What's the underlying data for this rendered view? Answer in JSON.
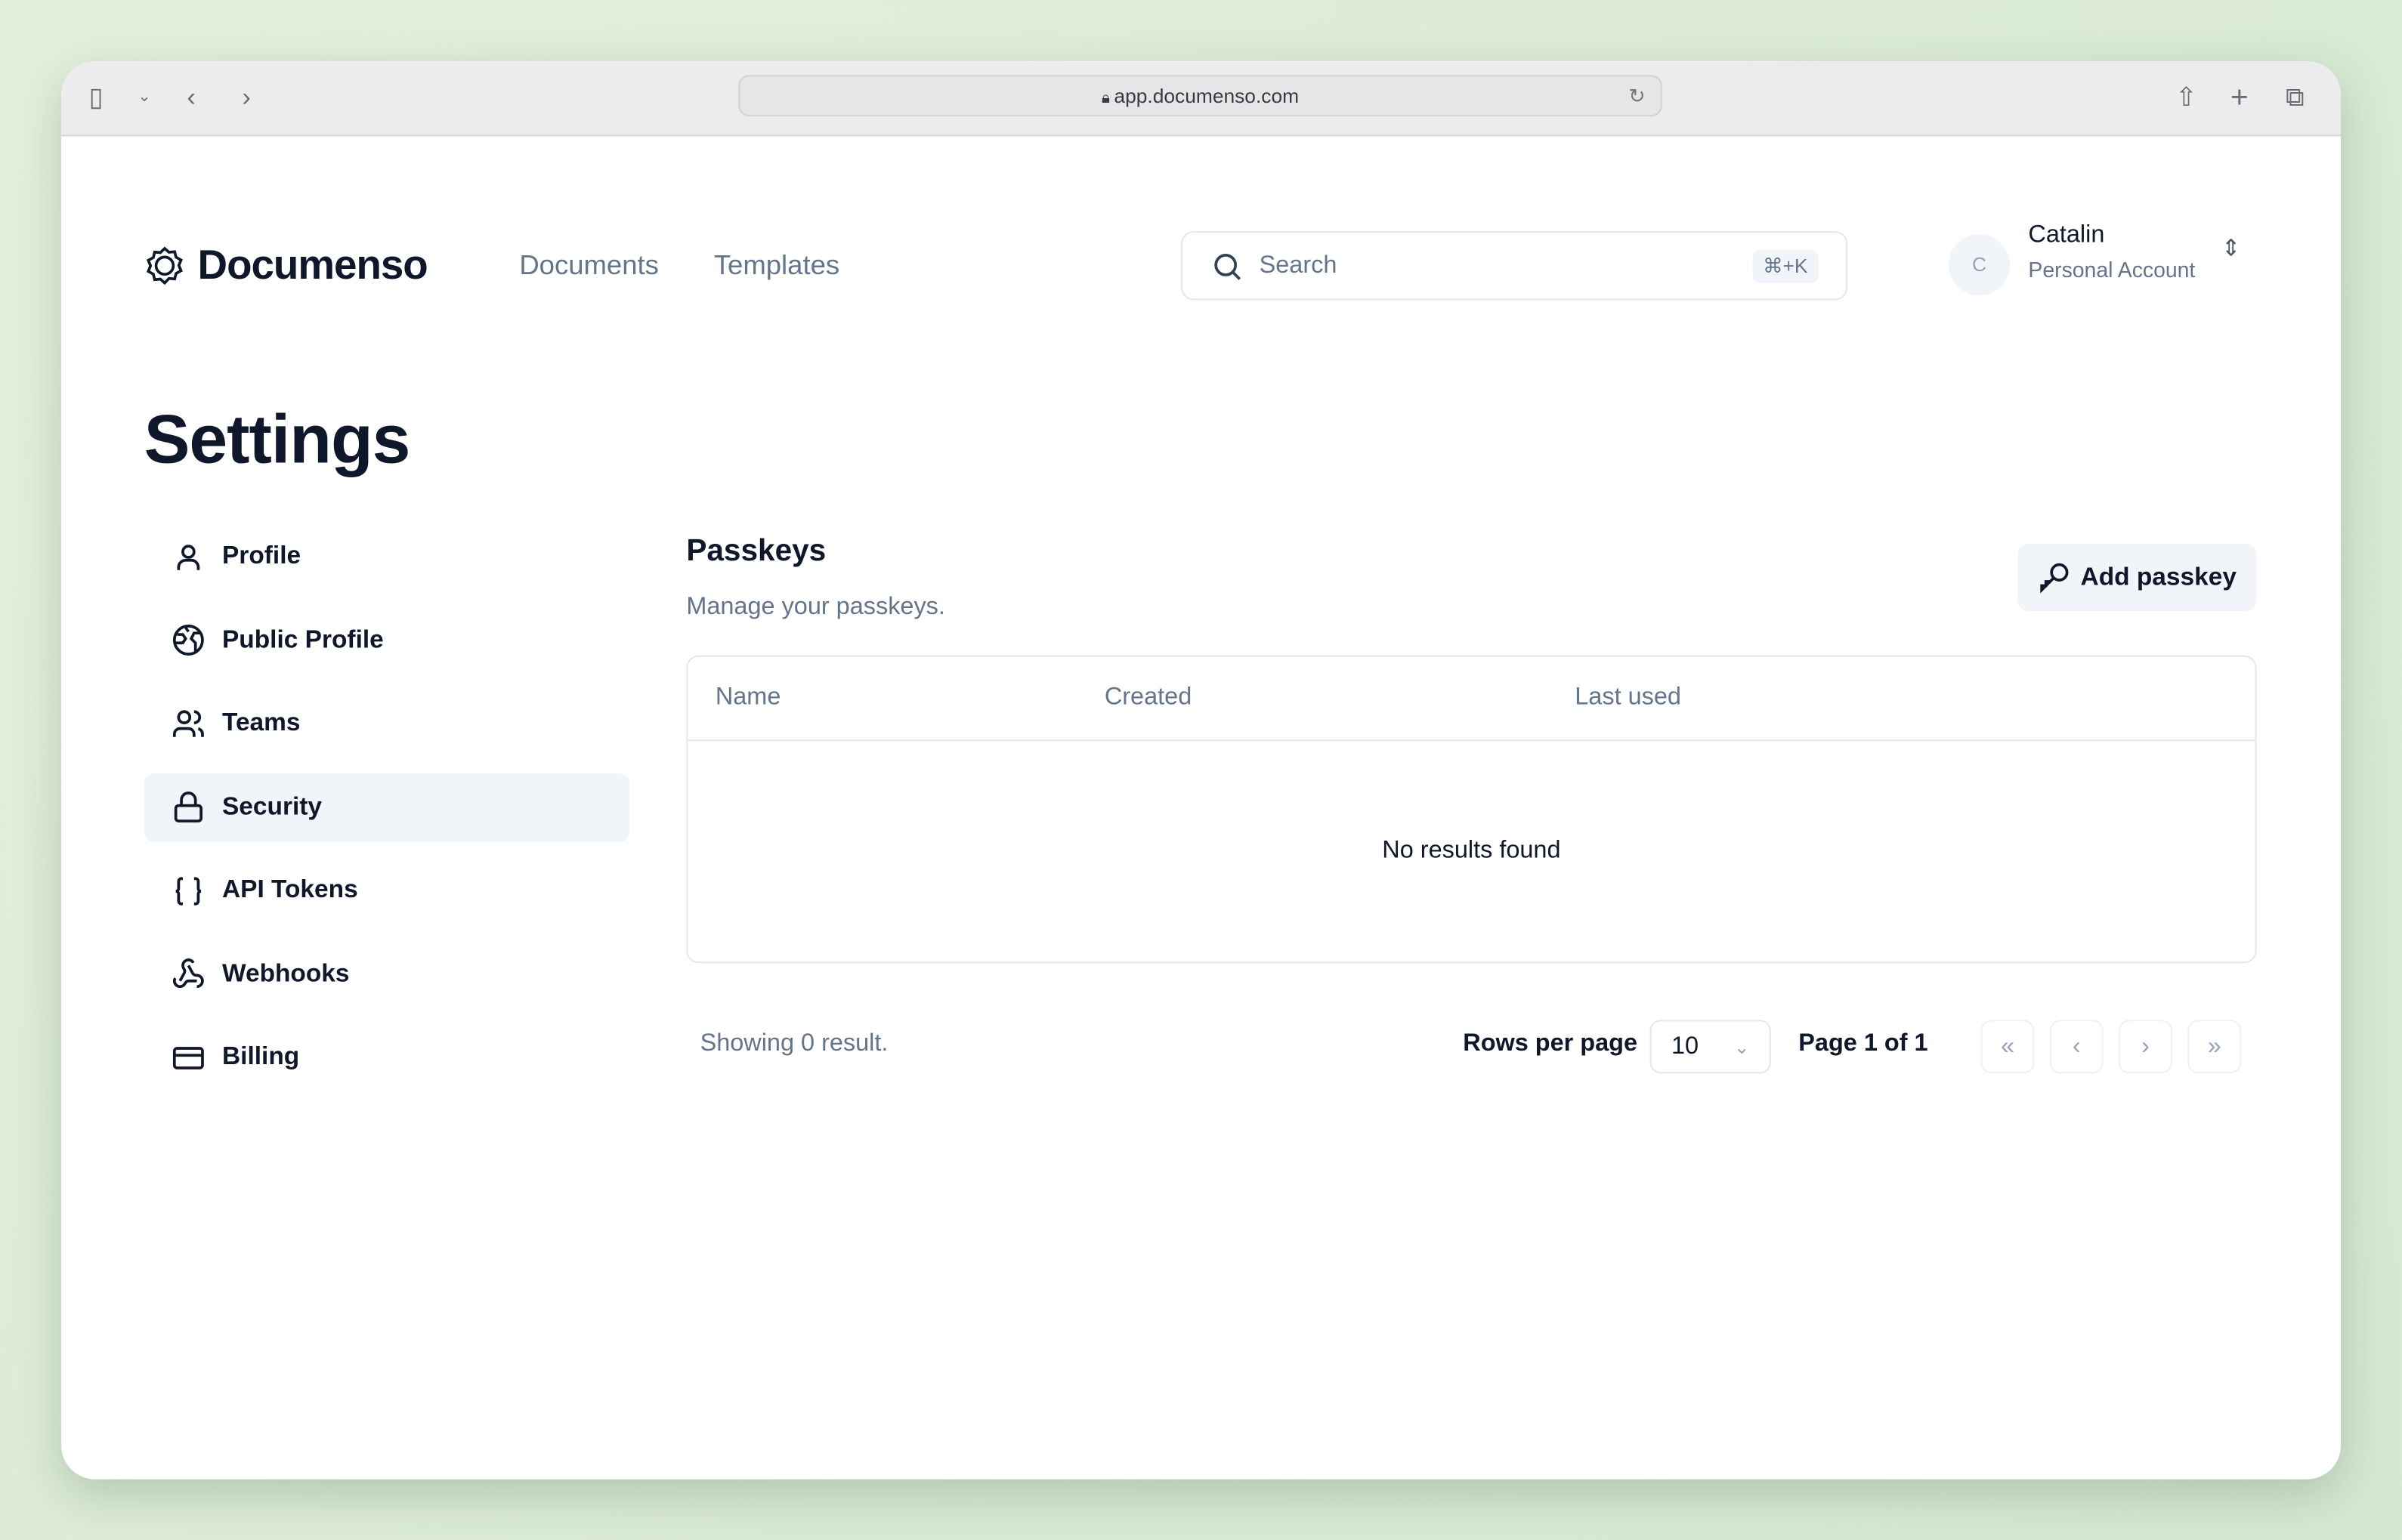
{
  "browser": {
    "url": "app.documenso.com"
  },
  "header": {
    "brand": "Documenso",
    "nav": [
      "Documents",
      "Templates"
    ],
    "search_placeholder": "Search",
    "search_shortcut": "⌘+K",
    "user": {
      "initial": "C",
      "name": "Catalin",
      "account": "Personal Account"
    }
  },
  "page": {
    "title": "Settings"
  },
  "sidebar": {
    "items": [
      {
        "label": "Profile",
        "icon": "user-icon"
      },
      {
        "label": "Public Profile",
        "icon": "globe-icon"
      },
      {
        "label": "Teams",
        "icon": "users-icon"
      },
      {
        "label": "Security",
        "icon": "lock-icon",
        "active": true
      },
      {
        "label": "API Tokens",
        "icon": "braces-icon"
      },
      {
        "label": "Webhooks",
        "icon": "webhook-icon"
      },
      {
        "label": "Billing",
        "icon": "credit-card-icon"
      }
    ]
  },
  "passkeys": {
    "title": "Passkeys",
    "subtitle": "Manage your passkeys.",
    "add_label": "Add passkey",
    "columns": [
      "Name",
      "Created",
      "Last used"
    ],
    "empty": "No results found"
  },
  "pagination": {
    "summary": "Showing 0 result.",
    "rows_label": "Rows per page",
    "rows_value": "10",
    "page_label": "Page 1 of 1"
  }
}
